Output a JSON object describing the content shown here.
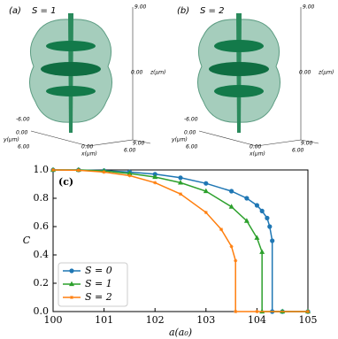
{
  "panels": [
    {
      "label": "(a)",
      "s_label": "S = 1",
      "axis_texts": [
        "9.00",
        "0.00",
        "z(μm)",
        "-6.00",
        "0.00",
        "y(μm)",
        "6.00",
        "0.00",
        "x(μm)",
        "6.00",
        "9.00"
      ]
    },
    {
      "label": "(b)",
      "s_label": "S = 2",
      "axis_texts": [
        "9.00",
        "0.00",
        "z(μm)",
        "-6.00",
        "0.00",
        "y(μm)",
        "6.00",
        "0.00",
        "x(μm)",
        "6.00",
        "9.00"
      ]
    }
  ],
  "chart_data": {
    "type": "line",
    "label": "(c)",
    "xlabel": "a(a₀)",
    "ylabel": "C",
    "xlim": [
      100,
      105
    ],
    "xticks": [
      100,
      101,
      102,
      103,
      104,
      105
    ],
    "ylim": [
      0,
      1.0
    ],
    "yticks": [
      {
        "value": 0,
        "label": "0.0"
      },
      0.2,
      0.4,
      0.6,
      0.8,
      {
        "value": 1.0,
        "label": "1.0"
      }
    ],
    "legend": "lower left",
    "series": [
      {
        "name": "S = 0",
        "color": "#1f77b4",
        "marker": "circle",
        "x": [
          100,
          100.5,
          101,
          101.5,
          102,
          102.5,
          103,
          103.5,
          103.8,
          104,
          104.1,
          104.2,
          104.25,
          104.3,
          104.3,
          104.5,
          105
        ],
        "values": [
          1,
          1,
          0.995,
          0.985,
          0.97,
          0.945,
          0.905,
          0.85,
          0.8,
          0.75,
          0.71,
          0.66,
          0.6,
          0.5,
          0,
          0,
          0
        ]
      },
      {
        "name": "S = 1",
        "color": "#2ca02c",
        "marker": "triangle",
        "x": [
          100,
          100.5,
          101,
          101.5,
          102,
          102.5,
          103,
          103.5,
          103.8,
          104,
          104.1,
          104.1,
          104.5,
          105
        ],
        "values": [
          1,
          1,
          0.993,
          0.975,
          0.95,
          0.91,
          0.85,
          0.74,
          0.64,
          0.52,
          0.42,
          0,
          0,
          0
        ]
      },
      {
        "name": "S = 2",
        "color": "#ff7f0e",
        "marker": "star",
        "x": [
          100,
          100.5,
          101,
          101.5,
          102,
          102.5,
          103,
          103.3,
          103.5,
          103.58,
          103.58,
          104,
          105
        ],
        "values": [
          1,
          0.998,
          0.985,
          0.96,
          0.91,
          0.83,
          0.7,
          0.58,
          0.46,
          0.36,
          0,
          0,
          0
        ]
      }
    ]
  }
}
